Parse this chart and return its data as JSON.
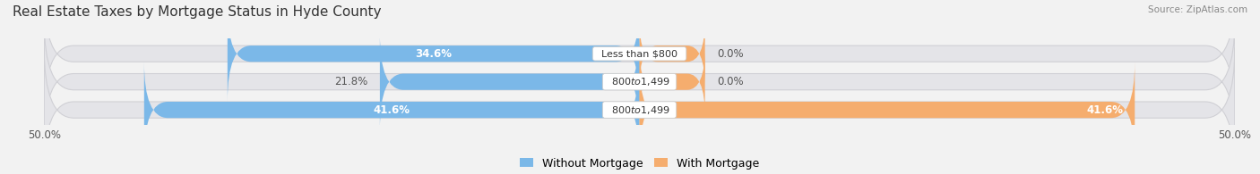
{
  "title": "Real Estate Taxes by Mortgage Status in Hyde County",
  "source": "Source: ZipAtlas.com",
  "rows": [
    {
      "label": "Less than $800",
      "without_mortgage": 34.6,
      "with_mortgage": 0.0,
      "wom_label_inside": true,
      "wm_label_inside": false
    },
    {
      "label": "$800 to $1,499",
      "without_mortgage": 21.8,
      "with_mortgage": 0.0,
      "wom_label_inside": false,
      "wm_label_inside": false
    },
    {
      "label": "$800 to $1,499",
      "without_mortgage": 41.6,
      "with_mortgage": 41.6,
      "wom_label_inside": true,
      "wm_label_inside": true
    }
  ],
  "x_max": 50.0,
  "color_without": "#7BB8E8",
  "color_with": "#F5AD6E",
  "color_without_light": "#B8D8F0",
  "bar_height": 0.58,
  "bg_color": "#F2F2F2",
  "bar_bg_color": "#E4E4E8",
  "title_fontsize": 11,
  "label_fontsize": 8.5,
  "category_fontsize": 8,
  "legend_fontsize": 9,
  "tick_fontsize": 8.5,
  "small_bar_width": 5.5
}
